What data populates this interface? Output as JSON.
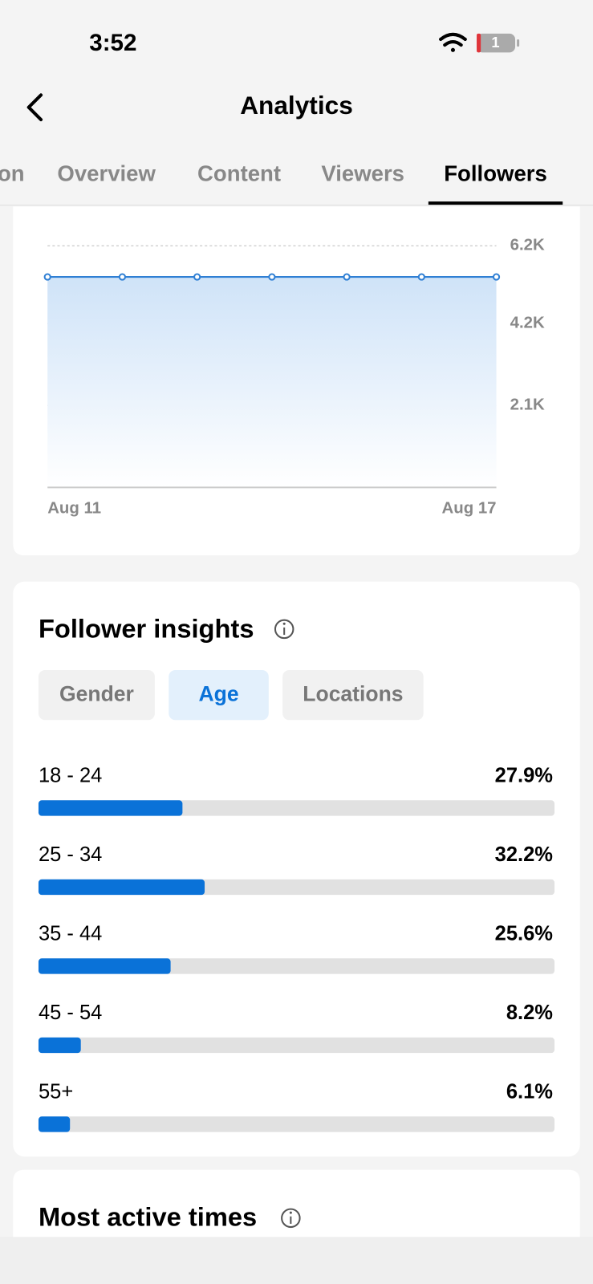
{
  "status_bar": {
    "time": "3:52",
    "battery": "1"
  },
  "header": {
    "title": "Analytics"
  },
  "tabs": [
    {
      "label": "on",
      "selected": false
    },
    {
      "label": "Overview",
      "selected": false
    },
    {
      "label": "Content",
      "selected": false
    },
    {
      "label": "Viewers",
      "selected": false
    },
    {
      "label": "Followers",
      "selected": true
    }
  ],
  "insights": {
    "title": "Follower insights",
    "filters": [
      {
        "label": "Gender",
        "selected": false
      },
      {
        "label": "Age",
        "selected": true
      },
      {
        "label": "Locations",
        "selected": false
      }
    ]
  },
  "next_section": {
    "title": "Most active times"
  },
  "chart_data": [
    {
      "type": "area",
      "categories": [
        "Aug 11",
        null,
        null,
        null,
        null,
        null,
        "Aug 17"
      ],
      "values": [
        5400,
        5400,
        5400,
        5400,
        5400,
        5400,
        5400
      ],
      "color": "#2f7fd4",
      "ylim": [
        0,
        6200
      ],
      "yticks": [
        {
          "value": 2100,
          "label": "2.1K"
        },
        {
          "value": 4200,
          "label": "4.2K"
        },
        {
          "value": 6200,
          "label": "6.2K"
        }
      ],
      "grid": true
    },
    {
      "type": "hbar",
      "categories": [
        "18 - 24",
        "25 - 34",
        "35 - 44",
        "45 - 54",
        "55+"
      ],
      "values": [
        27.9,
        32.2,
        25.6,
        8.2,
        6.1
      ],
      "value_labels": [
        "27.9%",
        "32.2%",
        "25.6%",
        "8.2%",
        "6.1%"
      ],
      "color": "#0a72d8",
      "xlim": [
        0,
        100
      ]
    }
  ]
}
